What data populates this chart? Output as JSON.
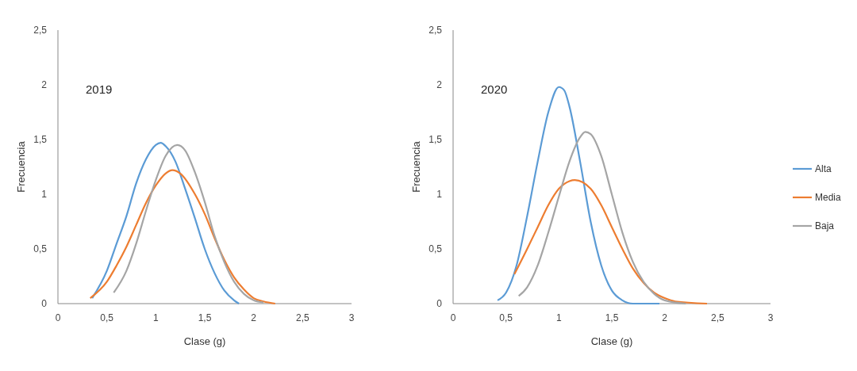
{
  "chart_data": [
    {
      "type": "line",
      "xlabel": "Clase (g)",
      "ylabel": "Frecuencia",
      "annotations": [
        "2019"
      ],
      "xlim": [
        0,
        3
      ],
      "ylim": [
        0,
        2.5
      ],
      "xticks": [
        0,
        {
          "value": 0.5,
          "label": "0,5"
        },
        1,
        {
          "value": 1.5,
          "label": "1,5"
        },
        2,
        {
          "value": 2.5,
          "label": "2,5"
        },
        3
      ],
      "yticks": [
        0,
        {
          "value": 0.5,
          "label": "0,5"
        },
        1,
        {
          "value": 1.5,
          "label": "1,5"
        },
        2,
        {
          "value": 2.5,
          "label": "2,5"
        }
      ],
      "grid": false,
      "legend": false,
      "marker": "none",
      "line_style": "solid",
      "series": [
        {
          "color": "#5b9bd5",
          "x": [
            0.35,
            0.5,
            0.6,
            0.7,
            0.8,
            0.9,
            1.0,
            1.05,
            1.1,
            1.2,
            1.3,
            1.4,
            1.5,
            1.6,
            1.7,
            1.8,
            1.85
          ],
          "values": [
            0.05,
            0.3,
            0.55,
            0.8,
            1.1,
            1.32,
            1.45,
            1.47,
            1.44,
            1.3,
            1.05,
            0.78,
            0.5,
            0.28,
            0.12,
            0.03,
            0
          ]
        },
        {
          "color": "#ed7d31",
          "x": [
            0.33,
            0.5,
            0.6,
            0.7,
            0.8,
            0.9,
            1.0,
            1.1,
            1.17,
            1.25,
            1.4,
            1.5,
            1.6,
            1.7,
            1.8,
            1.9,
            2.0,
            2.1,
            2.22
          ],
          "values": [
            0.05,
            0.2,
            0.35,
            0.52,
            0.72,
            0.92,
            1.08,
            1.19,
            1.22,
            1.19,
            1.0,
            0.82,
            0.6,
            0.4,
            0.24,
            0.13,
            0.05,
            0.02,
            0
          ]
        },
        {
          "color": "#a5a5a5",
          "x": [
            0.57,
            0.7,
            0.8,
            0.9,
            1.0,
            1.1,
            1.22,
            1.3,
            1.4,
            1.5,
            1.6,
            1.7,
            1.8,
            1.9,
            2.0,
            2.1
          ],
          "values": [
            0.1,
            0.3,
            0.55,
            0.85,
            1.13,
            1.35,
            1.45,
            1.4,
            1.2,
            0.93,
            0.62,
            0.38,
            0.2,
            0.09,
            0.03,
            0.01
          ]
        }
      ]
    },
    {
      "type": "line",
      "xlabel": "Clase (g)",
      "ylabel": "Frecuencia",
      "annotations": [
        "2020"
      ],
      "xlim": [
        0,
        3
      ],
      "ylim": [
        0,
        2.5
      ],
      "xticks": [
        0,
        {
          "value": 0.5,
          "label": "0,5"
        },
        1,
        {
          "value": 1.5,
          "label": "1,5"
        },
        2,
        {
          "value": 2.5,
          "label": "2,5"
        },
        3
      ],
      "yticks": [
        0,
        {
          "value": 0.5,
          "label": "0,5"
        },
        1,
        {
          "value": 1.5,
          "label": "1,5"
        },
        2,
        {
          "value": 2.5,
          "label": "2,5"
        }
      ],
      "grid": false,
      "legend": "right",
      "marker": "none",
      "line_style": "solid",
      "series": [
        {
          "name": "Alta",
          "color": "#5b9bd5",
          "x": [
            0.42,
            0.5,
            0.6,
            0.7,
            0.8,
            0.9,
            1.0,
            1.05,
            1.1,
            1.2,
            1.3,
            1.4,
            1.5,
            1.6,
            1.7,
            1.95
          ],
          "values": [
            0.03,
            0.1,
            0.35,
            0.8,
            1.3,
            1.75,
            1.98,
            1.95,
            1.8,
            1.3,
            0.75,
            0.35,
            0.12,
            0.03,
            0,
            0
          ]
        },
        {
          "name": "Media",
          "color": "#ed7d31",
          "x": [
            0.58,
            0.7,
            0.8,
            0.9,
            1.0,
            1.1,
            1.15,
            1.3,
            1.4,
            1.5,
            1.6,
            1.7,
            1.8,
            1.9,
            2.0,
            2.1,
            2.4
          ],
          "values": [
            0.27,
            0.5,
            0.7,
            0.9,
            1.05,
            1.12,
            1.13,
            1.05,
            0.9,
            0.7,
            0.5,
            0.32,
            0.19,
            0.1,
            0.05,
            0.02,
            0
          ]
        },
        {
          "name": "Baja",
          "color": "#a5a5a5",
          "x": [
            0.62,
            0.7,
            0.8,
            0.9,
            1.0,
            1.1,
            1.2,
            1.25,
            1.3,
            1.4,
            1.5,
            1.6,
            1.7,
            1.8,
            1.9,
            2.0,
            2.2
          ],
          "values": [
            0.07,
            0.15,
            0.35,
            0.65,
            0.98,
            1.3,
            1.52,
            1.57,
            1.55,
            1.35,
            1.0,
            0.65,
            0.38,
            0.2,
            0.09,
            0.03,
            0
          ]
        }
      ]
    }
  ]
}
